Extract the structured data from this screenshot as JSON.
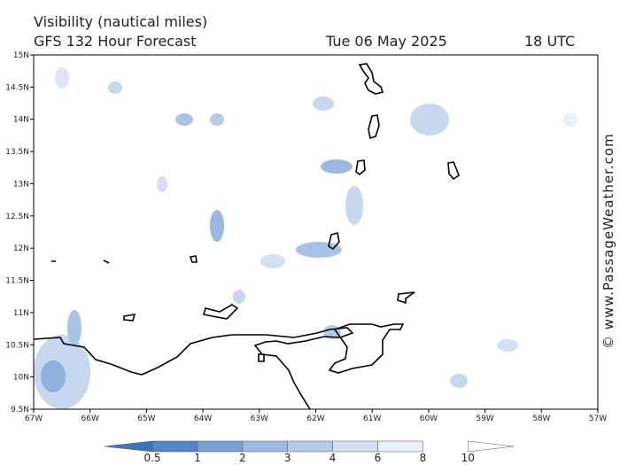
{
  "header": {
    "title": "Visibility (nautical miles)",
    "subtitle": "GFS 132 Hour Forecast",
    "date": "Tue 06 May 2025",
    "time": "18 UTC"
  },
  "map": {
    "lon_labels": [
      "67W",
      "66W",
      "65W",
      "64W",
      "63W",
      "62W",
      "61W",
      "60W",
      "59W",
      "58W",
      "57W"
    ],
    "lat_labels": [
      "9.5N",
      "10N",
      "10.5N",
      "11N",
      "11.5N",
      "12N",
      "12.5N",
      "13N",
      "13.5N",
      "14N",
      "14.5N",
      "15N"
    ]
  },
  "colorbar": {
    "levels": [
      0.5,
      1,
      2,
      3,
      4,
      6,
      8,
      10
    ],
    "colors": [
      "#3f74ba",
      "#5586c6",
      "#7a9fd3",
      "#9ab8e0",
      "#b7cce8",
      "#d2e0f1",
      "#e9f0f9",
      "#ffffff"
    ]
  },
  "watermark": "© www.PassageWeather.com"
}
